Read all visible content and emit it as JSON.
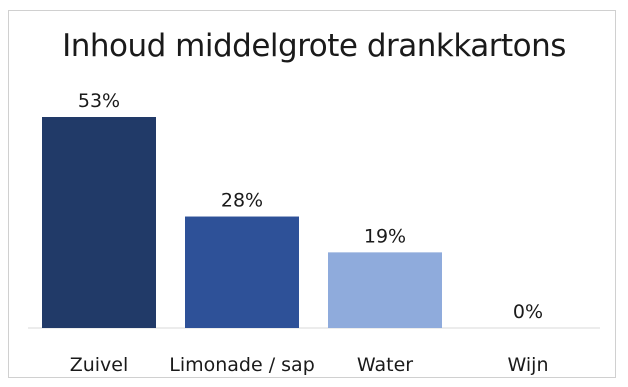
{
  "chart_data": {
    "type": "bar",
    "title": "Inhoud middelgrote drankkartons",
    "categories": [
      "Zuivel",
      "Limonade / sap",
      "Water",
      "Wijn"
    ],
    "values": [
      53,
      28,
      19,
      0
    ],
    "value_labels": [
      "53%",
      "28%",
      "19%",
      "0%"
    ],
    "colors": [
      "#213a68",
      "#2e5198",
      "#8fabdc",
      "#8fabdc"
    ],
    "ylim": [
      0,
      53
    ],
    "grid": false,
    "legend": "none"
  }
}
